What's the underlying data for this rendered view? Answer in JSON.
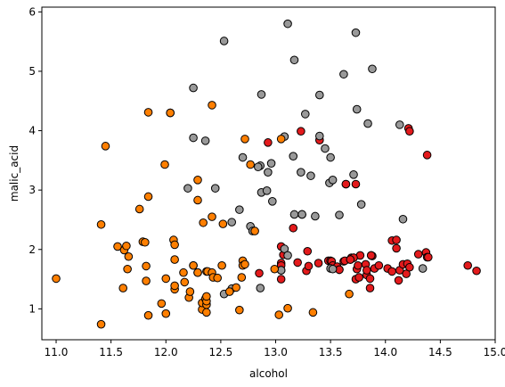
{
  "chart_data": {
    "type": "scatter",
    "title": "",
    "xlabel": "alcohol",
    "ylabel": "malic_acid",
    "xlim": [
      10.87,
      15.0
    ],
    "ylim": [
      0.48,
      6.08
    ],
    "xticks": [
      11.0,
      11.5,
      12.0,
      12.5,
      13.0,
      13.5,
      14.0,
      14.5,
      15.0
    ],
    "yticks": [
      1,
      2,
      3,
      4,
      5,
      6
    ],
    "grid": false,
    "legend": "none",
    "marker_edge_color": "#000000",
    "series": [
      {
        "color": "#e31a1c",
        "points": [
          [
            12.93,
            3.8
          ],
          [
            13.23,
            3.99
          ],
          [
            13.4,
            3.84
          ],
          [
            14.21,
            4.04
          ],
          [
            14.22,
            3.99
          ],
          [
            14.38,
            3.59
          ],
          [
            13.73,
            3.1
          ],
          [
            12.85,
            1.6
          ],
          [
            13.05,
            1.77
          ],
          [
            13.05,
            1.73
          ],
          [
            13.05,
            1.65
          ],
          [
            13.05,
            1.5
          ],
          [
            13.05,
            2.05
          ],
          [
            13.07,
            1.91
          ],
          [
            13.16,
            2.36
          ],
          [
            13.24,
            2.59
          ],
          [
            13.2,
            1.78
          ],
          [
            13.29,
            1.97
          ],
          [
            13.28,
            1.64
          ],
          [
            13.3,
            1.72
          ],
          [
            13.39,
            1.77
          ],
          [
            13.48,
            1.81
          ],
          [
            13.5,
            1.81
          ],
          [
            13.51,
            1.8
          ],
          [
            13.52,
            1.73
          ],
          [
            13.56,
            1.71
          ],
          [
            13.58,
            1.66
          ],
          [
            13.62,
            1.8
          ],
          [
            13.63,
            1.81
          ],
          [
            13.64,
            3.1
          ],
          [
            13.68,
            1.83
          ],
          [
            13.69,
            1.86
          ],
          [
            13.71,
            1.86
          ],
          [
            13.73,
            1.5
          ],
          [
            13.74,
            1.67
          ],
          [
            13.75,
            1.73
          ],
          [
            13.76,
            1.53
          ],
          [
            13.77,
            1.9
          ],
          [
            13.82,
            1.75
          ],
          [
            13.83,
            1.57
          ],
          [
            13.83,
            1.65
          ],
          [
            13.86,
            1.35
          ],
          [
            13.86,
            1.51
          ],
          [
            13.87,
            1.9
          ],
          [
            13.88,
            1.89
          ],
          [
            13.9,
            1.68
          ],
          [
            13.94,
            1.73
          ],
          [
            14.02,
            1.68
          ],
          [
            14.06,
            1.63
          ],
          [
            14.06,
            2.15
          ],
          [
            14.1,
            2.16
          ],
          [
            14.1,
            2.02
          ],
          [
            14.12,
            1.48
          ],
          [
            14.13,
            1.65
          ],
          [
            14.16,
            1.75
          ],
          [
            14.19,
            1.59
          ],
          [
            14.2,
            1.76
          ],
          [
            14.22,
            1.7
          ],
          [
            14.3,
            1.92
          ],
          [
            14.37,
            1.95
          ],
          [
            14.38,
            1.87
          ],
          [
            14.39,
            1.87
          ],
          [
            14.75,
            1.73
          ],
          [
            14.83,
            1.64
          ],
          [
            13.64,
            3.1
          ],
          [
            13.71,
            1.86
          ],
          [
            13.87,
            1.9
          ],
          [
            13.58,
            1.66
          ],
          [
            13.68,
            1.83
          ]
        ]
      },
      {
        "color": "#999999",
        "points": [
          [
            12.53,
            5.51
          ],
          [
            13.11,
            5.8
          ],
          [
            13.17,
            5.19
          ],
          [
            13.73,
            5.65
          ],
          [
            13.88,
            5.04
          ],
          [
            13.62,
            4.95
          ],
          [
            12.25,
            4.72
          ],
          [
            12.87,
            4.61
          ],
          [
            13.4,
            4.6
          ],
          [
            13.27,
            4.28
          ],
          [
            13.74,
            4.36
          ],
          [
            13.84,
            4.12
          ],
          [
            14.13,
            4.1
          ],
          [
            12.25,
            3.88
          ],
          [
            12.36,
            3.83
          ],
          [
            13.08,
            3.9
          ],
          [
            13.4,
            3.91
          ],
          [
            13.45,
            3.7
          ],
          [
            13.5,
            3.55
          ],
          [
            13.16,
            3.57
          ],
          [
            12.86,
            3.41
          ],
          [
            12.96,
            3.45
          ],
          [
            12.84,
            3.39
          ],
          [
            12.7,
            3.55
          ],
          [
            12.93,
            3.3
          ],
          [
            13.23,
            3.3
          ],
          [
            13.32,
            3.24
          ],
          [
            13.49,
            3.12
          ],
          [
            13.52,
            3.17
          ],
          [
            13.71,
            3.26
          ],
          [
            12.2,
            3.03
          ],
          [
            12.45,
            3.03
          ],
          [
            12.87,
            2.96
          ],
          [
            12.92,
            2.99
          ],
          [
            12.97,
            2.81
          ],
          [
            13.78,
            2.76
          ],
          [
            12.67,
            2.67
          ],
          [
            12.6,
            2.46
          ],
          [
            13.17,
            2.59
          ],
          [
            13.24,
            2.59
          ],
          [
            13.36,
            2.56
          ],
          [
            13.58,
            2.58
          ],
          [
            14.16,
            2.51
          ],
          [
            12.77,
            2.39
          ],
          [
            12.79,
            2.31
          ],
          [
            13.08,
            2.01
          ],
          [
            13.11,
            1.9
          ],
          [
            12.86,
            1.35
          ],
          [
            12.53,
            1.25
          ],
          [
            12.6,
            1.34
          ],
          [
            13.5,
            1.68
          ],
          [
            13.52,
            1.67
          ],
          [
            14.34,
            1.68
          ],
          [
            13.05,
            1.65
          ]
        ]
      },
      {
        "color": "#ff7f00",
        "points": [
          [
            11.45,
            3.74
          ],
          [
            11.84,
            4.31
          ],
          [
            12.04,
            4.3
          ],
          [
            12.42,
            4.43
          ],
          [
            11.41,
            2.42
          ],
          [
            11.0,
            1.51
          ],
          [
            11.41,
            0.74
          ],
          [
            11.56,
            2.05
          ],
          [
            11.61,
            1.35
          ],
          [
            11.62,
            1.99
          ],
          [
            11.64,
            2.06
          ],
          [
            11.65,
            1.67
          ],
          [
            11.66,
            1.88
          ],
          [
            11.76,
            2.68
          ],
          [
            11.79,
            2.13
          ],
          [
            11.81,
            2.12
          ],
          [
            11.82,
            1.72
          ],
          [
            11.82,
            1.47
          ],
          [
            11.84,
            0.89
          ],
          [
            11.84,
            2.89
          ],
          [
            11.96,
            1.09
          ],
          [
            11.99,
            3.43
          ],
          [
            12.0,
            0.92
          ],
          [
            12.0,
            1.51
          ],
          [
            12.04,
            4.3
          ],
          [
            12.07,
            2.16
          ],
          [
            12.08,
            2.08
          ],
          [
            12.08,
            1.83
          ],
          [
            12.08,
            1.33
          ],
          [
            12.08,
            1.39
          ],
          [
            12.16,
            1.61
          ],
          [
            12.17,
            1.45
          ],
          [
            12.21,
            1.19
          ],
          [
            12.22,
            1.29
          ],
          [
            12.25,
            1.73
          ],
          [
            12.29,
            1.61
          ],
          [
            12.29,
            2.83
          ],
          [
            12.29,
            3.17
          ],
          [
            12.33,
            0.99
          ],
          [
            12.33,
            1.1
          ],
          [
            12.34,
            2.45
          ],
          [
            12.36,
            1.17
          ],
          [
            12.37,
            1.07
          ],
          [
            12.37,
            1.13
          ],
          [
            12.37,
            1.21
          ],
          [
            12.37,
            1.63
          ],
          [
            12.37,
            0.94
          ],
          [
            12.38,
            1.63
          ],
          [
            12.42,
            2.55
          ],
          [
            12.42,
            1.61
          ],
          [
            12.43,
            1.53
          ],
          [
            12.47,
            1.52
          ],
          [
            12.51,
            1.73
          ],
          [
            12.52,
            2.43
          ],
          [
            12.58,
            1.29
          ],
          [
            12.64,
            1.36
          ],
          [
            12.67,
            0.98
          ],
          [
            12.69,
            1.53
          ],
          [
            12.7,
            1.81
          ],
          [
            12.7,
            1.73
          ],
          [
            12.72,
            3.86
          ],
          [
            12.72,
            1.75
          ],
          [
            12.77,
            3.43
          ],
          [
            12.81,
            2.31
          ],
          [
            12.99,
            1.67
          ],
          [
            13.03,
            0.9
          ],
          [
            13.05,
            3.86
          ],
          [
            13.11,
            1.01
          ],
          [
            13.34,
            0.94
          ],
          [
            13.67,
            1.25
          ],
          [
            12.25,
            1.73
          ],
          [
            12.29,
            1.61
          ]
        ]
      }
    ]
  }
}
